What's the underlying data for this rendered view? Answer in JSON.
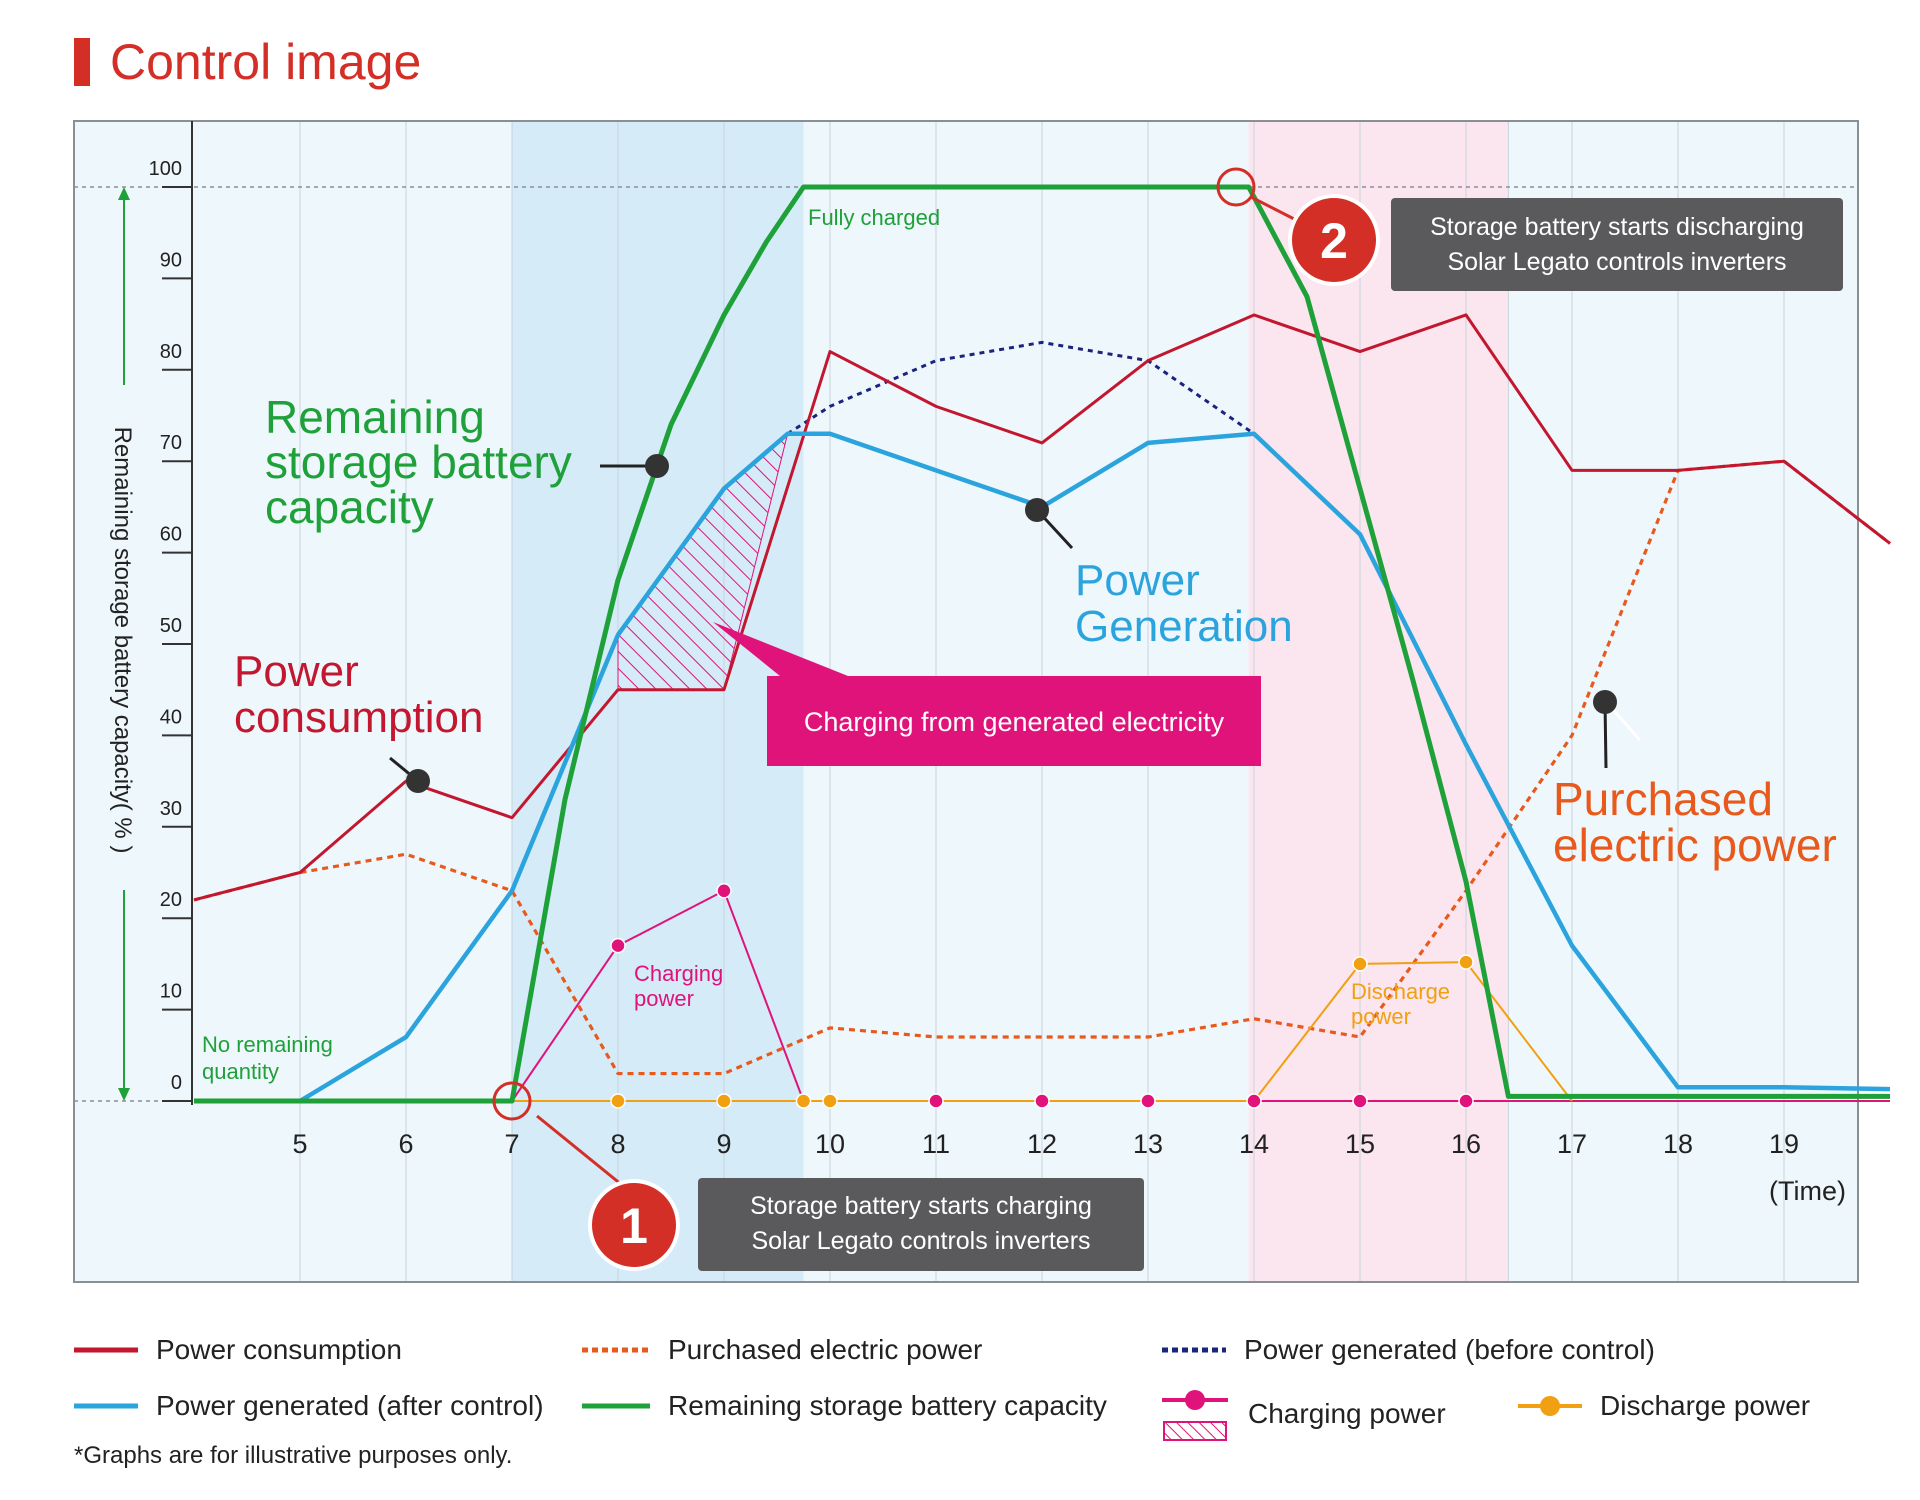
{
  "title": "Control image",
  "note": "*Graphs are for illustrative purposes only.",
  "colors": {
    "consumption": "#c3162f",
    "purchased": "#e8591c",
    "generated_before": "#1a237e",
    "generated_after": "#2ba4dd",
    "battery": "#1fa13a",
    "charging": "#e0137a",
    "discharge": "#f0a010",
    "accent_red": "#d32f27"
  },
  "chart_data": {
    "type": "line",
    "xlabel": "(Time)",
    "ylabel": "Remaining storage battery capacity( % )",
    "xlim": [
      4,
      20
    ],
    "ylim": [
      0,
      100
    ],
    "x_ticks": [
      5,
      6,
      7,
      8,
      9,
      10,
      11,
      12,
      13,
      14,
      15,
      16,
      17,
      18,
      19
    ],
    "x_tick_labels": [
      "5",
      "6",
      "7",
      "8",
      "9",
      "10",
      "11",
      "12",
      "13",
      "14",
      "15",
      "16",
      "17",
      "18",
      "19"
    ],
    "y_ticks": [
      0,
      10,
      20,
      30,
      40,
      50,
      60,
      70,
      80,
      90,
      100
    ],
    "y_tick_labels": [
      "0",
      "10",
      "20",
      "30",
      "40",
      "50",
      "60",
      "70",
      "80",
      "90",
      "100"
    ],
    "shaded_regions": [
      {
        "name": "charging-period",
        "from": 7,
        "to": 9.75,
        "color": "#d5ebf8"
      },
      {
        "name": "discharging-period",
        "from": 13.95,
        "to": 16.4,
        "color": "#fbe5ee"
      }
    ],
    "series": [
      {
        "name": "Power consumption",
        "key": "consumption",
        "x": [
          4,
          5,
          6,
          7,
          8,
          9,
          10,
          11,
          12,
          13,
          14,
          15,
          16,
          17,
          18,
          19,
          20
        ],
        "y": [
          22,
          25,
          35,
          31,
          45,
          45,
          82,
          76,
          72,
          81,
          86,
          82,
          86,
          69,
          69,
          70,
          61
        ]
      },
      {
        "name": "Purchased electric power",
        "key": "purchased",
        "x": [
          4,
          5,
          6,
          7,
          8,
          9,
          10,
          11,
          12,
          13,
          14,
          15,
          16,
          17,
          18,
          19,
          20
        ],
        "y": [
          22,
          25,
          27,
          23,
          3,
          3,
          8,
          7,
          7,
          7,
          9,
          7,
          23,
          40,
          69,
          70,
          61
        ]
      },
      {
        "name": "Power generated (before control)",
        "key": "generated_before",
        "x": [
          9.6,
          10,
          11,
          12,
          13,
          14
        ],
        "y": [
          73,
          76,
          81,
          83,
          81,
          73
        ]
      },
      {
        "name": "Power generated (after control)",
        "key": "generated_after",
        "x": [
          4,
          5,
          6,
          7,
          8,
          9,
          9.6,
          10,
          11,
          12,
          13,
          14,
          15,
          16,
          17,
          18,
          19,
          20
        ],
        "y": [
          0,
          0,
          7,
          23,
          51,
          67,
          73,
          73,
          69,
          65,
          72,
          73,
          62,
          39,
          17,
          1.5,
          1.5,
          1.3
        ]
      },
      {
        "name": "Remaining storage battery capacity",
        "key": "battery",
        "x": [
          4,
          7,
          7.5,
          8,
          8.5,
          9,
          9.4,
          9.75,
          13.95,
          14.5,
          15,
          15.5,
          16,
          16.4,
          17,
          20
        ],
        "y": [
          0,
          0,
          33,
          57,
          74,
          86,
          94,
          100,
          100,
          88,
          67,
          46,
          24,
          0.5,
          0.5,
          0.5
        ]
      },
      {
        "name": "Charging power",
        "key": "charging",
        "x": [
          7,
          8,
          9,
          9.75,
          11,
          12,
          13,
          14,
          15,
          16,
          20
        ],
        "y": [
          0,
          17,
          23,
          0,
          0,
          0,
          0,
          0,
          0,
          0,
          0
        ]
      },
      {
        "name": "Discharge power",
        "key": "discharge",
        "x": [
          7,
          8,
          9,
          9.75,
          10,
          14,
          15,
          16,
          17
        ],
        "y": [
          0,
          0,
          0,
          0,
          0,
          0,
          15,
          15.2,
          0
        ]
      }
    ],
    "hatched_area": {
      "name": "Charging from generated electricity",
      "upper": [
        [
          8,
          51
        ],
        [
          9,
          67
        ],
        [
          9.6,
          73
        ]
      ],
      "lower": [
        [
          9.6,
          73
        ],
        [
          9,
          45
        ],
        [
          8,
          45
        ]
      ]
    },
    "labels": {
      "remaining": [
        "Remaining",
        "storage battery",
        "capacity"
      ],
      "consumption": [
        "Power",
        "consumption"
      ],
      "generation": [
        "Power",
        "Generation"
      ],
      "purchased": [
        "Purchased",
        "electric power"
      ],
      "fully_charged": "Fully charged",
      "no_remaining": [
        "No remaining",
        "quantity"
      ],
      "charging_power": [
        "Charging",
        "power"
      ],
      "discharge_power": [
        "Discharge",
        "power"
      ],
      "charging_from_generated": "Charging from generated electricity"
    },
    "callouts": [
      {
        "number": "1",
        "lines": [
          "Storage battery starts charging",
          "Solar Legato controls inverters"
        ]
      },
      {
        "number": "2",
        "lines": [
          "Storage battery starts discharging",
          "Solar Legato controls inverters"
        ]
      }
    ]
  },
  "legend": [
    {
      "label": "Power consumption",
      "key": "consumption",
      "style": "solid"
    },
    {
      "label": "Purchased electric power",
      "key": "purchased",
      "style": "dotted"
    },
    {
      "label": "Power generated (before control)",
      "key": "generated_before",
      "style": "dotted"
    },
    {
      "label": "Power generated (after control)",
      "key": "generated_after",
      "style": "solid"
    },
    {
      "label": "Remaining storage battery capacity",
      "key": "battery",
      "style": "solid"
    },
    {
      "label": "Charging power",
      "key": "charging",
      "style": "marker"
    },
    {
      "label": "Discharge power",
      "key": "discharge",
      "style": "marker"
    }
  ]
}
